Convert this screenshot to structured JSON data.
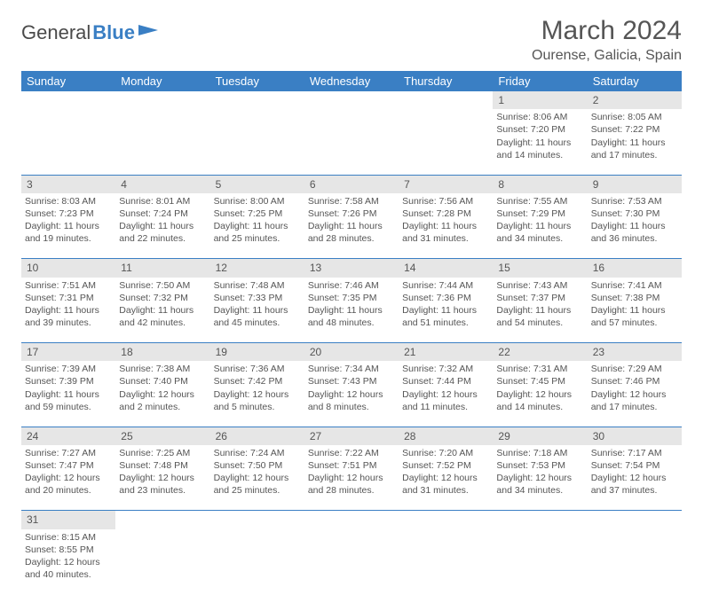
{
  "logo": {
    "text1": "General",
    "text2": "Blue"
  },
  "title": "March 2024",
  "location": "Ourense, Galicia, Spain",
  "colors": {
    "header_bg": "#3a7fc4",
    "header_text": "#ffffff",
    "daynum_bg": "#e6e6e6",
    "text": "#555555",
    "row_border": "#3a7fc4"
  },
  "day_headers": [
    "Sunday",
    "Monday",
    "Tuesday",
    "Wednesday",
    "Thursday",
    "Friday",
    "Saturday"
  ],
  "weeks": [
    {
      "nums": [
        "",
        "",
        "",
        "",
        "",
        "1",
        "2"
      ],
      "cells": [
        null,
        null,
        null,
        null,
        null,
        {
          "sunrise": "8:06 AM",
          "sunset": "7:20 PM",
          "daylight": "11 hours and 14 minutes."
        },
        {
          "sunrise": "8:05 AM",
          "sunset": "7:22 PM",
          "daylight": "11 hours and 17 minutes."
        }
      ]
    },
    {
      "nums": [
        "3",
        "4",
        "5",
        "6",
        "7",
        "8",
        "9"
      ],
      "cells": [
        {
          "sunrise": "8:03 AM",
          "sunset": "7:23 PM",
          "daylight": "11 hours and 19 minutes."
        },
        {
          "sunrise": "8:01 AM",
          "sunset": "7:24 PM",
          "daylight": "11 hours and 22 minutes."
        },
        {
          "sunrise": "8:00 AM",
          "sunset": "7:25 PM",
          "daylight": "11 hours and 25 minutes."
        },
        {
          "sunrise": "7:58 AM",
          "sunset": "7:26 PM",
          "daylight": "11 hours and 28 minutes."
        },
        {
          "sunrise": "7:56 AM",
          "sunset": "7:28 PM",
          "daylight": "11 hours and 31 minutes."
        },
        {
          "sunrise": "7:55 AM",
          "sunset": "7:29 PM",
          "daylight": "11 hours and 34 minutes."
        },
        {
          "sunrise": "7:53 AM",
          "sunset": "7:30 PM",
          "daylight": "11 hours and 36 minutes."
        }
      ]
    },
    {
      "nums": [
        "10",
        "11",
        "12",
        "13",
        "14",
        "15",
        "16"
      ],
      "cells": [
        {
          "sunrise": "7:51 AM",
          "sunset": "7:31 PM",
          "daylight": "11 hours and 39 minutes."
        },
        {
          "sunrise": "7:50 AM",
          "sunset": "7:32 PM",
          "daylight": "11 hours and 42 minutes."
        },
        {
          "sunrise": "7:48 AM",
          "sunset": "7:33 PM",
          "daylight": "11 hours and 45 minutes."
        },
        {
          "sunrise": "7:46 AM",
          "sunset": "7:35 PM",
          "daylight": "11 hours and 48 minutes."
        },
        {
          "sunrise": "7:44 AM",
          "sunset": "7:36 PM",
          "daylight": "11 hours and 51 minutes."
        },
        {
          "sunrise": "7:43 AM",
          "sunset": "7:37 PM",
          "daylight": "11 hours and 54 minutes."
        },
        {
          "sunrise": "7:41 AM",
          "sunset": "7:38 PM",
          "daylight": "11 hours and 57 minutes."
        }
      ]
    },
    {
      "nums": [
        "17",
        "18",
        "19",
        "20",
        "21",
        "22",
        "23"
      ],
      "cells": [
        {
          "sunrise": "7:39 AM",
          "sunset": "7:39 PM",
          "daylight": "11 hours and 59 minutes."
        },
        {
          "sunrise": "7:38 AM",
          "sunset": "7:40 PM",
          "daylight": "12 hours and 2 minutes."
        },
        {
          "sunrise": "7:36 AM",
          "sunset": "7:42 PM",
          "daylight": "12 hours and 5 minutes."
        },
        {
          "sunrise": "7:34 AM",
          "sunset": "7:43 PM",
          "daylight": "12 hours and 8 minutes."
        },
        {
          "sunrise": "7:32 AM",
          "sunset": "7:44 PM",
          "daylight": "12 hours and 11 minutes."
        },
        {
          "sunrise": "7:31 AM",
          "sunset": "7:45 PM",
          "daylight": "12 hours and 14 minutes."
        },
        {
          "sunrise": "7:29 AM",
          "sunset": "7:46 PM",
          "daylight": "12 hours and 17 minutes."
        }
      ]
    },
    {
      "nums": [
        "24",
        "25",
        "26",
        "27",
        "28",
        "29",
        "30"
      ],
      "cells": [
        {
          "sunrise": "7:27 AM",
          "sunset": "7:47 PM",
          "daylight": "12 hours and 20 minutes."
        },
        {
          "sunrise": "7:25 AM",
          "sunset": "7:48 PM",
          "daylight": "12 hours and 23 minutes."
        },
        {
          "sunrise": "7:24 AM",
          "sunset": "7:50 PM",
          "daylight": "12 hours and 25 minutes."
        },
        {
          "sunrise": "7:22 AM",
          "sunset": "7:51 PM",
          "daylight": "12 hours and 28 minutes."
        },
        {
          "sunrise": "7:20 AM",
          "sunset": "7:52 PM",
          "daylight": "12 hours and 31 minutes."
        },
        {
          "sunrise": "7:18 AM",
          "sunset": "7:53 PM",
          "daylight": "12 hours and 34 minutes."
        },
        {
          "sunrise": "7:17 AM",
          "sunset": "7:54 PM",
          "daylight": "12 hours and 37 minutes."
        }
      ]
    },
    {
      "nums": [
        "31",
        "",
        "",
        "",
        "",
        "",
        ""
      ],
      "cells": [
        {
          "sunrise": "8:15 AM",
          "sunset": "8:55 PM",
          "daylight": "12 hours and 40 minutes."
        },
        null,
        null,
        null,
        null,
        null,
        null
      ]
    }
  ]
}
